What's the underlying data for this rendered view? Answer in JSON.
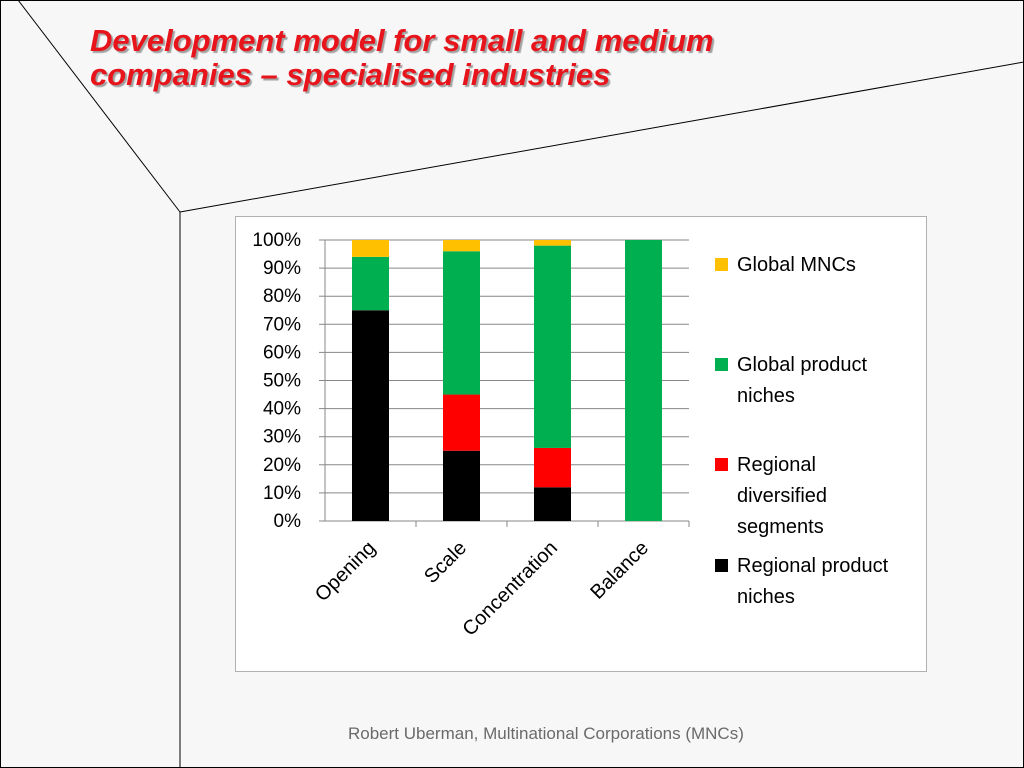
{
  "slide": {
    "title_lines": [
      "Development model for small and medium",
      "companies – specialised industries"
    ],
    "footer": "Robert Uberman, Multinational Corporations (MNCs)"
  },
  "chart_data": {
    "type": "bar",
    "stacked": true,
    "percent": true,
    "categories": [
      "Opening",
      "Scale",
      "Concentration",
      "Balance"
    ],
    "series": [
      {
        "name": "Regional product niches",
        "color": "#000000",
        "values": [
          75,
          25,
          12,
          0
        ]
      },
      {
        "name": "Regional diversified segments",
        "color": "#ff0000",
        "values": [
          0,
          20,
          14,
          0
        ]
      },
      {
        "name": "Global product niches",
        "color": "#00b050",
        "values": [
          19,
          51,
          72,
          100
        ]
      },
      {
        "name": "Global MNCs",
        "color": "#ffc000",
        "values": [
          6,
          4,
          2,
          0
        ]
      }
    ],
    "legend_order": [
      "Global MNCs",
      "Global product niches",
      "Regional diversified segments",
      "Regional product niches"
    ],
    "legend_lines": [
      [
        "Global MNCs"
      ],
      [
        "Global product",
        "niches"
      ],
      [
        "Regional",
        "diversified",
        "segments"
      ],
      [
        "Regional product",
        "niches"
      ]
    ],
    "y_ticks": [
      "0%",
      "10%",
      "20%",
      "30%",
      "40%",
      "50%",
      "60%",
      "70%",
      "80%",
      "90%",
      "100%"
    ],
    "ylim": [
      0,
      100
    ],
    "grid": true,
    "legend_position": "right"
  }
}
